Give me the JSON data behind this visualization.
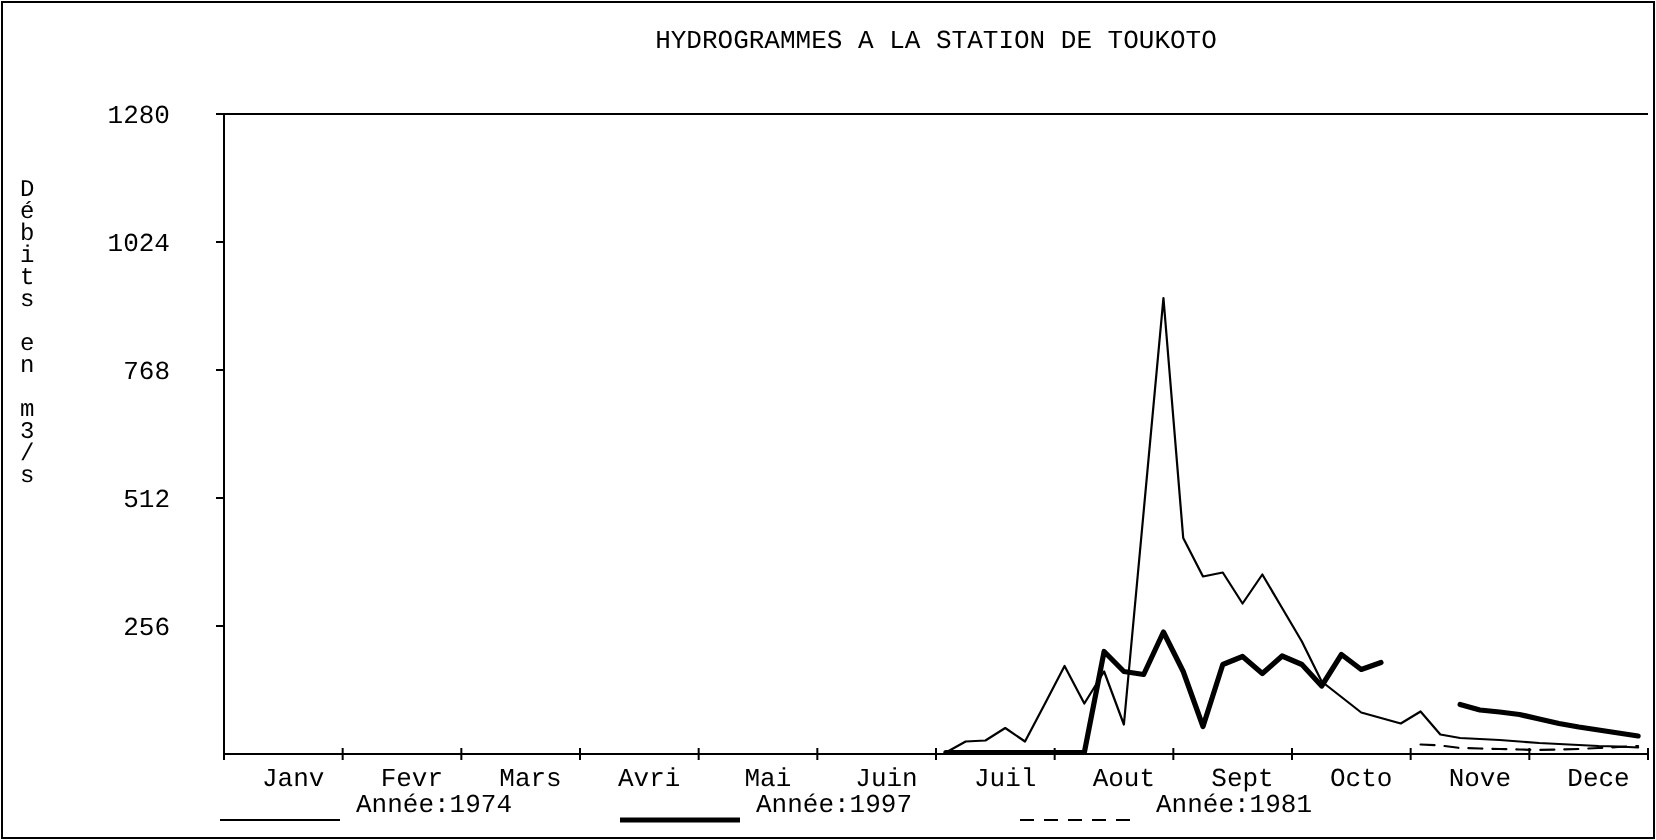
{
  "chart_data": {
    "type": "line",
    "title": "HYDROGRAMMES A LA STATION DE TOUKOTO",
    "ylabel": "Débits en m3/s",
    "categories": [
      null,
      null,
      null,
      "Janv",
      null,
      null,
      null,
      null,
      null,
      "Fevr",
      null,
      null,
      null,
      null,
      null,
      "Mars",
      null,
      null,
      null,
      null,
      null,
      "Avri",
      null,
      null,
      null,
      null,
      null,
      "Mai",
      null,
      null,
      null,
      null,
      null,
      "Juin",
      null,
      null,
      null,
      null,
      null,
      "Juil",
      null,
      null,
      null,
      null,
      null,
      "Aout",
      null,
      null,
      null,
      null,
      null,
      "Sept",
      null,
      null,
      null,
      null,
      null,
      "Octo",
      null,
      null,
      null,
      null,
      null,
      "Nove",
      null,
      null,
      null,
      null,
      null,
      "Dece",
      null,
      null
    ],
    "ylim": [
      0,
      1280
    ],
    "yticks": [
      256,
      512,
      768,
      1024,
      1280
    ],
    "legend": "bottom",
    "grid": false,
    "series": [
      {
        "name": "Année:1974",
        "color": "#000000",
        "line_style": "solid",
        "values": [
          null,
          null,
          null,
          null,
          null,
          null,
          null,
          null,
          null,
          null,
          null,
          null,
          null,
          null,
          null,
          null,
          null,
          null,
          null,
          null,
          null,
          null,
          null,
          null,
          null,
          null,
          null,
          null,
          null,
          null,
          null,
          null,
          null,
          null,
          null,
          null,
          3,
          25,
          27,
          52,
          25,
          100,
          176,
          101,
          165,
          59,
          485,
          912,
          432,
          355,
          363,
          301,
          359,
          292,
          225,
          145,
          114,
          83,
          72,
          61,
          85,
          39,
          32,
          30,
          28,
          25,
          22,
          20,
          18,
          16,
          15,
          13
        ]
      },
      {
        "name": "Année:1997",
        "color": "#000000",
        "line_style": "solid",
        "values": [
          null,
          null,
          null,
          null,
          null,
          null,
          null,
          null,
          null,
          null,
          null,
          null,
          null,
          null,
          null,
          null,
          null,
          null,
          null,
          null,
          null,
          null,
          null,
          null,
          null,
          null,
          null,
          null,
          null,
          null,
          null,
          null,
          null,
          null,
          null,
          null,
          3,
          3,
          3,
          3,
          3,
          3,
          3,
          3,
          205,
          165,
          159,
          244,
          165,
          55,
          179,
          195,
          161,
          196,
          179,
          136,
          199,
          169,
          183,
          null,
          null,
          null,
          99,
          88,
          84,
          79,
          70,
          61,
          54,
          48,
          42,
          36
        ]
      },
      {
        "name": "Année:1981",
        "color": "#000000",
        "line_style": "dashed",
        "values": [
          null,
          null,
          null,
          null,
          null,
          null,
          null,
          null,
          null,
          null,
          null,
          null,
          null,
          null,
          null,
          null,
          null,
          null,
          null,
          null,
          null,
          null,
          null,
          null,
          null,
          null,
          null,
          null,
          null,
          null,
          null,
          null,
          null,
          null,
          null,
          null,
          null,
          null,
          null,
          null,
          null,
          null,
          null,
          null,
          null,
          null,
          null,
          null,
          null,
          null,
          null,
          null,
          null,
          null,
          null,
          null,
          null,
          null,
          null,
          null,
          19,
          17,
          12,
          11,
          10,
          9,
          8,
          9,
          10,
          12,
          14,
          16
        ]
      }
    ]
  }
}
